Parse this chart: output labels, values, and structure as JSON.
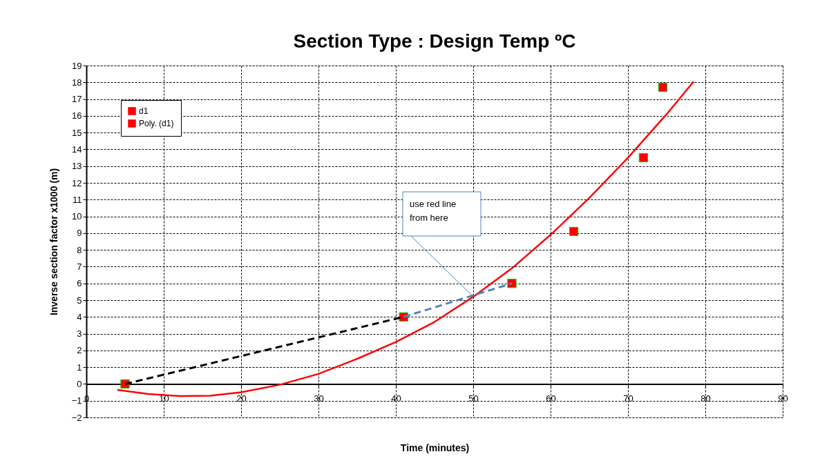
{
  "chart_data": {
    "type": "scatter",
    "title": "Section Type : Design Temp ºC",
    "xlabel": "Time (minutes)",
    "ylabel": "Inverse section factor x1000 (m)",
    "xlim": [
      0,
      90
    ],
    "xticks": [
      0,
      10,
      20,
      30,
      40,
      50,
      60,
      70,
      80,
      90
    ],
    "ylim": [
      -2,
      19
    ],
    "yticks": [
      -2,
      -1,
      0,
      1,
      2,
      3,
      4,
      5,
      6,
      7,
      8,
      9,
      10,
      11,
      12,
      13,
      14,
      15,
      16,
      17,
      18,
      19
    ],
    "grid": true,
    "legend": "top left",
    "series": [
      {
        "name": "d1",
        "marker": "square",
        "color": "#ff0000",
        "x": [
          5,
          41,
          55,
          63,
          72,
          74.5
        ],
        "values": [
          0,
          4,
          6,
          9.1,
          13.5,
          17.7
        ]
      },
      {
        "name": "Poly. (d1)",
        "type": "line",
        "color": "#ff0000",
        "line_style": "solid",
        "x": [
          4,
          8,
          12,
          16,
          20,
          25,
          30,
          35,
          40,
          45,
          50,
          55,
          60,
          65,
          70,
          75,
          78.5
        ],
        "values": [
          -0.35,
          -0.6,
          -0.72,
          -0.7,
          -0.5,
          -0.05,
          0.6,
          1.5,
          2.5,
          3.7,
          5.2,
          6.9,
          8.9,
          11.1,
          13.5,
          16.1,
          18.05
        ]
      },
      {
        "type": "line",
        "color": "#000000",
        "line_style": "dashed",
        "x": [
          5,
          41
        ],
        "values": [
          0,
          4
        ]
      },
      {
        "type": "line",
        "color": "#4f81bd",
        "line_style": "dashed",
        "x": [
          41,
          55
        ],
        "values": [
          4,
          6
        ]
      }
    ],
    "annotations": [
      "use red line from here"
    ]
  }
}
